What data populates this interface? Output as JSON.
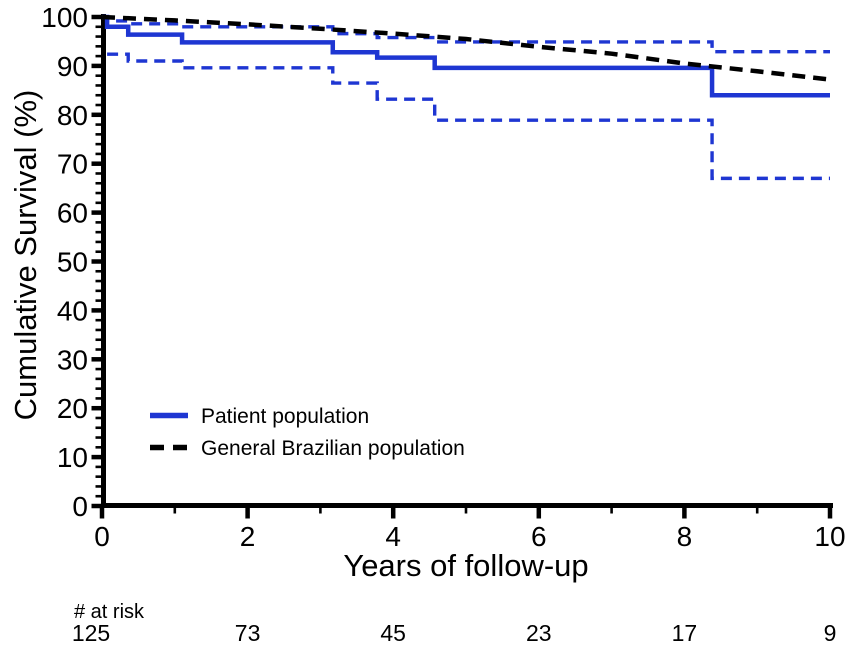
{
  "figure": {
    "background": "#ffffff",
    "accent_blue": "#1e36d2",
    "line_black": "#000000"
  },
  "chart_data": {
    "type": "line",
    "title": "",
    "xlabel": "Years of follow-up",
    "ylabel": "Cumulative Survival (%)",
    "xlim": [
      0,
      10
    ],
    "ylim": [
      0,
      100
    ],
    "grid": false,
    "legend_position": "inside-lower-left",
    "x_major_ticks": [
      0,
      2,
      4,
      6,
      8,
      10
    ],
    "x_minor_ticks": [
      1,
      3,
      5,
      7,
      9
    ],
    "y_major_ticks": [
      100,
      90,
      80,
      70,
      60,
      50,
      40,
      30,
      20,
      10,
      0
    ],
    "y_minor_step": 2,
    "legend": [
      {
        "label": "Patient population",
        "style": "solid",
        "color": "#1e36d2"
      },
      {
        "label": "General Brazilian population",
        "style": "dashed",
        "color": "#000000"
      }
    ],
    "series": [
      {
        "name": "Patient population lower 95% CI",
        "type": "step",
        "style": "dashed",
        "color": "#1e36d2",
        "width": 3.4,
        "dash": [
          11,
          7
        ],
        "points": [
          [
            0.07,
            92.4
          ],
          [
            0.36,
            91.0
          ],
          [
            1.1,
            89.6
          ],
          [
            3.17,
            86.5
          ],
          [
            3.78,
            83.2
          ],
          [
            4.57,
            78.9
          ],
          [
            8.38,
            67.0
          ],
          [
            10,
            67.0
          ]
        ]
      },
      {
        "name": "Patient population upper 95% CI",
        "type": "step",
        "style": "dashed",
        "color": "#1e36d2",
        "width": 3.4,
        "dash": [
          11,
          7
        ],
        "points": [
          [
            0,
            100
          ],
          [
            0.07,
            99.2
          ],
          [
            0.36,
            98.6
          ],
          [
            1.1,
            98.0
          ],
          [
            3.17,
            96.6
          ],
          [
            3.78,
            95.8
          ],
          [
            4.57,
            94.9
          ],
          [
            8.38,
            92.9
          ],
          [
            10,
            92.9
          ]
        ]
      },
      {
        "name": "Patient population",
        "type": "step",
        "style": "solid",
        "color": "#1e36d2",
        "width": 4.5,
        "dash": null,
        "points": [
          [
            0,
            100
          ],
          [
            0.07,
            98.0
          ],
          [
            0.36,
            96.4
          ],
          [
            1.1,
            94.8
          ],
          [
            3.17,
            92.8
          ],
          [
            3.78,
            91.7
          ],
          [
            4.57,
            89.6
          ],
          [
            8.38,
            84.0
          ],
          [
            10,
            84.0
          ]
        ]
      },
      {
        "name": "General Brazilian population",
        "type": "line",
        "style": "dashed",
        "color": "#000000",
        "width": 4.5,
        "dash": [
          13,
          8
        ],
        "x": [
          0,
          1,
          2,
          3,
          4,
          5,
          6,
          7,
          8,
          9,
          10
        ],
        "values": [
          100,
          99.3,
          98.5,
          97.6,
          96.6,
          95.5,
          93.9,
          92.5,
          90.5,
          88.9,
          87.2
        ]
      }
    ],
    "at_risk": {
      "header": "# at risk",
      "years": [
        0,
        2,
        4,
        6,
        8,
        10
      ],
      "values": [
        125,
        73,
        45,
        23,
        17,
        9
      ]
    }
  }
}
